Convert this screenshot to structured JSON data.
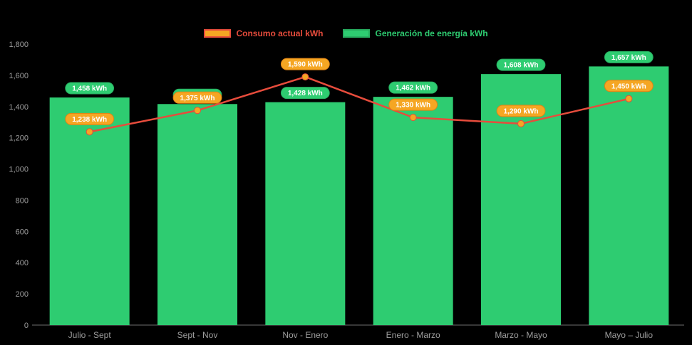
{
  "chart_data": {
    "type": "bar",
    "subtype": "bar-with-line-overlay",
    "title": "",
    "categories": [
      "Julio - Sept",
      "Sept - Nov",
      "Nov - Enero",
      "Enero - Marzo",
      "Marzo - Mayo",
      "Mayo – Julio"
    ],
    "series": [
      {
        "name": "Consumo actual kWh",
        "type": "line",
        "values": [
          1238,
          1375,
          1590,
          1330,
          1290,
          1450
        ],
        "labels": [
          "1,238 kWh",
          "1,375 kWh",
          "1,590 kWh",
          "1,330 kWh",
          "1,290 kWh",
          "1,450 kWh"
        ]
      },
      {
        "name": "Generación de energía kWh",
        "type": "bar",
        "values": [
          1458,
          1416,
          1428,
          1462,
          1608,
          1657
        ],
        "labels": [
          "1,458 kWh",
          "1,416 kWh",
          "1,428 kWh",
          "1,462 kWh",
          "1,608 kWh",
          "1,657 kWh"
        ]
      }
    ],
    "ylim": [
      0,
      1800
    ],
    "y_ticks": [
      0,
      200,
      400,
      600,
      800,
      1000,
      1200,
      1400,
      1600,
      1800
    ],
    "y_tick_labels": [
      "0",
      "200",
      "400",
      "600",
      "800",
      "1,000",
      "1,200",
      "1,400",
      "1,600",
      "1,800"
    ],
    "xlabel": "",
    "ylabel": "",
    "grid": false,
    "legend_position": "top-center",
    "colors": {
      "background": "#000000",
      "bar": "#2ecc71",
      "line": "#e74c3c",
      "marker_fill": "#f5a623",
      "marker_stroke": "#e74c3c",
      "badge_consumo_fill": "#f5a623",
      "badge_consumo_stroke": "#e08214",
      "badge_generacion_fill": "#2ecc71",
      "badge_generacion_stroke": "#27ae60",
      "badge_text": "#ffffff",
      "axis_text": "#9e9e9e",
      "axis_line": "#6e6e6e"
    }
  }
}
